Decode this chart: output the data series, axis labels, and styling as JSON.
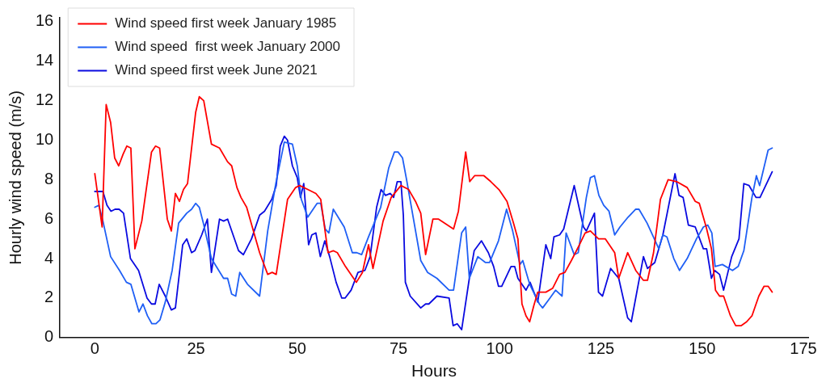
{
  "chart_data": {
    "type": "line",
    "xlabel": "Hours",
    "ylabel": "Hourly wind speed (m/s)",
    "xlim": [
      -8.6,
      176.2
    ],
    "ylim": [
      0,
      16.2
    ],
    "xticks": [
      0,
      25,
      50,
      75,
      100,
      125,
      150,
      175
    ],
    "yticks": [
      0,
      2,
      4,
      6,
      8,
      10,
      12,
      14,
      16
    ],
    "grid": false,
    "legend": "top left",
    "marker": "none",
    "line_style": "solid",
    "series": [
      {
        "name": "Wind speed first week January 1985",
        "color": "#ff0000",
        "x": [
          0,
          1.8,
          2.8,
          3.9,
          4.9,
          5.9,
          7,
          7.9,
          8.9,
          9.9,
          11.6,
          14,
          15,
          16,
          17.9,
          18.9,
          19.9,
          20.9,
          21.9,
          22.9,
          24.9,
          25.8,
          26.9,
          28.8,
          30.8,
          32.8,
          33.8,
          35.1,
          36.1,
          37.5,
          40.7,
          42.7,
          43.8,
          44.8,
          47.6,
          49.6,
          50.6,
          52.6,
          54.6,
          55.8,
          57.6,
          58.9,
          59.9,
          61.9,
          64.6,
          66.1,
          67.6,
          68.7,
          71.2,
          73.2,
          75.6,
          77.5,
          79.2,
          80.5,
          81.7,
          83.5,
          84.9,
          88.6,
          89.8,
          91.6,
          92.6,
          93.8,
          96.1,
          97.8,
          99.8,
          101.8,
          103.4,
          104.5,
          105.5,
          106.5,
          107.4,
          108.4,
          109.4,
          111.4,
          113.1,
          114.8,
          116.1,
          117.7,
          119.7,
          121.1,
          122.4,
          124.4,
          126.1,
          128.4,
          129.4,
          131.6,
          133.6,
          135.5,
          136.5,
          138,
          139.7,
          141.6,
          143.7,
          146.3,
          148.3,
          149.3,
          151,
          152.3,
          153.3,
          154.3,
          155.3,
          157,
          158.3,
          159.6,
          161,
          162.3,
          164,
          165.3,
          166.3,
          167.3
        ],
        "values": [
          8.3,
          5.6,
          11.8,
          10.9,
          9.1,
          8.7,
          9.3,
          9.7,
          9.6,
          4.5,
          5.9,
          9.4,
          9.7,
          9.6,
          6.0,
          5.4,
          7.3,
          6.9,
          7.5,
          7.8,
          11.4,
          12.2,
          12.0,
          9.8,
          9.6,
          8.9,
          8.7,
          7.6,
          7.1,
          6.6,
          4.3,
          3.2,
          3.3,
          3.2,
          7.0,
          7.6,
          7.7,
          7.5,
          7.3,
          7.0,
          4.3,
          4.4,
          4.3,
          3.6,
          2.8,
          3.3,
          4.7,
          3.5,
          5.9,
          7.1,
          7.7,
          7.5,
          6.9,
          6.3,
          4.2,
          6.0,
          6.0,
          5.5,
          6.4,
          9.4,
          7.9,
          8.2,
          8.2,
          7.9,
          7.5,
          6.9,
          5.8,
          5.0,
          1.7,
          1.1,
          0.8,
          1.6,
          2.3,
          2.3,
          2.5,
          3.2,
          3.3,
          3.9,
          4.7,
          5.3,
          5.4,
          5.0,
          5.0,
          4.3,
          3.0,
          4.3,
          3.4,
          2.9,
          2.9,
          4.3,
          7.0,
          8.0,
          7.9,
          7.6,
          6.9,
          6.8,
          5.6,
          4.5,
          2.4,
          2.1,
          2.1,
          1.1,
          0.6,
          0.6,
          0.8,
          1.1,
          2.1,
          2.6,
          2.6,
          2.3
        ]
      },
      {
        "name": "Wind speed  first week January 2000",
        "color": "#1f5ff5",
        "x": [
          0,
          1,
          2,
          3.9,
          6.1,
          7.8,
          8.9,
          10.9,
          11.9,
          13,
          14.1,
          15.1,
          16.1,
          17.4,
          19.1,
          20.7,
          22.7,
          23.9,
          24.9,
          25.8,
          26.8,
          28.8,
          31.8,
          32.8,
          33.8,
          34.8,
          35.8,
          37.7,
          40.7,
          42.7,
          44.7,
          46.8,
          48.8,
          50,
          51,
          52.6,
          54.9,
          55.8,
          56.9,
          57.8,
          58.9,
          61.6,
          63.6,
          64.7,
          65.9,
          67.6,
          70.6,
          72.6,
          74,
          74.9,
          76,
          77,
          80.5,
          82.2,
          84.5,
          87.5,
          88.6,
          90.6,
          91.6,
          92.5,
          94.6,
          96.5,
          97.5,
          99.7,
          101.7,
          103.2,
          105,
          105.7,
          107.4,
          109.8,
          110.6,
          112.4,
          113.8,
          115.4,
          116.4,
          118.4,
          119.4,
          121.4,
          122.4,
          123.4,
          124.5,
          125.7,
          127,
          128.4,
          129.7,
          131.7,
          133.6,
          134.4,
          136.4,
          139.3,
          140.3,
          141.3,
          143,
          144.4,
          146.3,
          148.6,
          150.3,
          151.4,
          152.4,
          153.2,
          155,
          157.5,
          158.9,
          160.3,
          162.3,
          163.4,
          164.2,
          166.3,
          167.3
        ],
        "values": [
          6.6,
          6.7,
          5.9,
          4.1,
          3.4,
          2.8,
          2.7,
          1.3,
          1.7,
          1.1,
          0.7,
          0.7,
          0.9,
          1.8,
          3.4,
          5.8,
          6.3,
          6.5,
          6.8,
          6.6,
          5.8,
          4.0,
          3.0,
          3.0,
          2.2,
          2.1,
          3.3,
          2.7,
          2.1,
          5.4,
          7.8,
          9.9,
          9.8,
          8.7,
          7.0,
          6.1,
          6.8,
          6.8,
          5.5,
          5.3,
          6.5,
          5.6,
          4.3,
          4.3,
          4.2,
          5.1,
          6.6,
          8.6,
          9.4,
          9.4,
          9.1,
          8.0,
          3.9,
          3.3,
          3.0,
          2.4,
          2.4,
          5.3,
          5.6,
          3.0,
          4.1,
          3.8,
          3.8,
          4.9,
          6.5,
          5.4,
          3.7,
          3.9,
          2.7,
          1.7,
          1.5,
          2.0,
          2.4,
          2.1,
          5.3,
          4.2,
          4.3,
          7.1,
          8.1,
          8.2,
          7.2,
          6.7,
          6.4,
          5.2,
          5.6,
          6.1,
          6.5,
          6.5,
          5.8,
          4.5,
          5.2,
          5.1,
          4.0,
          3.4,
          4.0,
          5.0,
          5.6,
          5.7,
          5.3,
          3.6,
          3.7,
          3.4,
          3.6,
          4.4,
          7.1,
          8.2,
          7.7,
          9.5,
          9.6
        ]
      },
      {
        "name": "Wind speed first week June 2021",
        "color": "#0a0ae0",
        "x": [
          0,
          2,
          3,
          4,
          5,
          6,
          7.1,
          8.8,
          10.8,
          12.9,
          14,
          14.9,
          15.9,
          17.4,
          18.9,
          19.9,
          21.7,
          22.7,
          23.9,
          24.7,
          26.4,
          27.8,
          28.8,
          30.8,
          31.8,
          32.8,
          35.5,
          36.7,
          38.7,
          40.7,
          41.9,
          43.7,
          44.8,
          45.8,
          46.8,
          47.6,
          48.8,
          50,
          50.8,
          51.6,
          52.8,
          53.6,
          54.6,
          55.7,
          56.8,
          58,
          59.6,
          61,
          61.8,
          63.3,
          65,
          66.7,
          68,
          69.6,
          70.7,
          71.8,
          73,
          73.8,
          74.7,
          75.6,
          76.2,
          76.7,
          77.9,
          80.5,
          81.7,
          82.5,
          84.5,
          87.5,
          88.5,
          89.5,
          90.6,
          92.5,
          93.7,
          95.5,
          97.2,
          98.5,
          99.7,
          100.5,
          102.8,
          103.7,
          104.5,
          106.5,
          107.5,
          109.4,
          111.4,
          112.6,
          113.4,
          114.8,
          115.8,
          117.1,
          118.4,
          119.7,
          120.7,
          121.4,
          123.4,
          124.4,
          125.4,
          127.4,
          129.4,
          131.6,
          132.5,
          135.5,
          136.5,
          138.3,
          140.3,
          143.3,
          144.3,
          145.3,
          146.6,
          148.3,
          150.3,
          151.1,
          152.3,
          153.1,
          154.3,
          155.3,
          157.3,
          159.1,
          160.3,
          161.6,
          163.3,
          164.3,
          167.3
        ],
        "values": [
          7.4,
          7.4,
          6.7,
          6.4,
          6.5,
          6.5,
          6.3,
          4.0,
          3.4,
          2.0,
          1.7,
          1.7,
          2.7,
          2.1,
          1.4,
          1.5,
          4.7,
          5.0,
          4.3,
          4.4,
          5.2,
          6.0,
          3.3,
          6.0,
          5.9,
          6.0,
          4.4,
          4.2,
          5.0,
          6.2,
          6.4,
          7.0,
          7.7,
          9.7,
          10.2,
          10.0,
          8.7,
          8.1,
          7.1,
          7.8,
          4.7,
          5.2,
          5.3,
          4.1,
          4.9,
          4.1,
          2.8,
          2.0,
          2.0,
          2.4,
          3.3,
          3.4,
          4.1,
          6.6,
          7.5,
          7.2,
          7.3,
          7.1,
          7.9,
          7.9,
          6.2,
          2.8,
          2.1,
          1.5,
          1.7,
          1.7,
          2.1,
          2.0,
          0.6,
          0.7,
          0.4,
          3.0,
          4.4,
          4.9,
          4.3,
          3.6,
          2.6,
          2.6,
          3.6,
          3.6,
          3.0,
          2.4,
          2.8,
          1.8,
          4.7,
          4.0,
          5.1,
          5.2,
          5.5,
          6.6,
          7.7,
          6.5,
          5.6,
          5.4,
          6.3,
          2.3,
          2.1,
          3.5,
          3.0,
          1.0,
          0.8,
          4.1,
          3.5,
          3.8,
          5.2,
          8.3,
          7.2,
          7.1,
          5.7,
          5.6,
          4.5,
          4.5,
          3.0,
          3.4,
          3.2,
          2.4,
          4.1,
          5.0,
          7.8,
          7.7,
          7.1,
          7.1,
          8.4
        ]
      }
    ]
  }
}
